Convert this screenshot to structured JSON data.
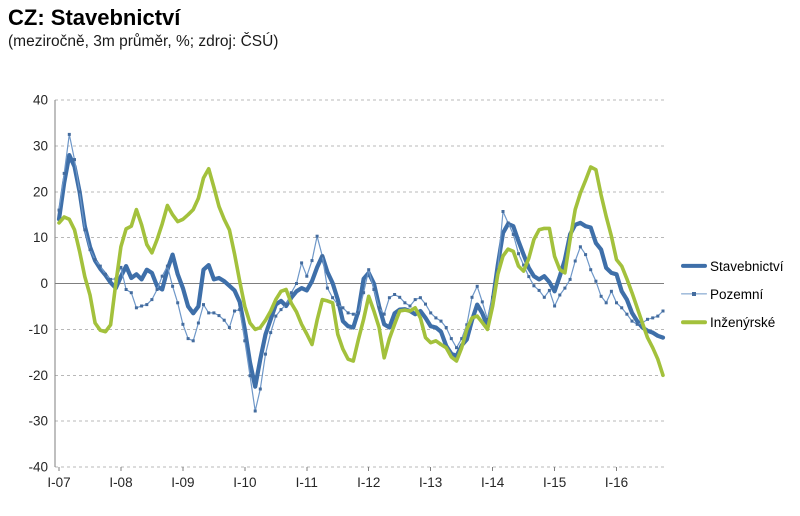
{
  "header": {
    "title": "CZ: Stavebnictví",
    "subtitle": "(meziročně, 3m průměr, %; zdroj: ČSÚ)"
  },
  "colors": {
    "stavebnictvi": "#3E6FA9",
    "pozemni": "#6E97C8",
    "pozemni_marker": "#446C9E",
    "inzenyrske": "#A3C13C",
    "gridline": "#b8b8b8",
    "zero_line": "#7f7f7f",
    "axis": "#7f7f7f",
    "tick_text": "#262626"
  },
  "chart_data": {
    "type": "line",
    "title": "CZ: Stavebnictví",
    "subtitle": "(meziročně, 3m průměr, %; zdroj: ČSÚ)",
    "xlabel": "",
    "ylabel": "",
    "x_unit": "monthly, Jan 2007 – Oct 2016",
    "ylim": [
      -40,
      40
    ],
    "y_ticks": [
      40,
      30,
      20,
      10,
      0,
      -10,
      -20,
      -30,
      -40
    ],
    "x_tick_labels": [
      "I-07",
      "I-08",
      "I-09",
      "I-10",
      "I-11",
      "I-12",
      "I-13",
      "I-14",
      "I-15",
      "I-16"
    ],
    "x_tick_month_positions": [
      0,
      12,
      24,
      36,
      48,
      60,
      72,
      84,
      96,
      108
    ],
    "grid": "horizontal-dashed",
    "legend_position": "right",
    "legend": [
      "Stavebnictví",
      "Pozemní",
      "Inženýrské"
    ],
    "series": [
      {
        "name": "Stavebnictví",
        "style": "thick-solid",
        "values": [
          14,
          22,
          28,
          25.5,
          20,
          12.5,
          8,
          5,
          3.2,
          1.8,
          0.2,
          -1,
          1.5,
          3.8,
          1.2,
          2.0,
          0.9,
          3.0,
          2.3,
          -0.6,
          -1.3,
          3.0,
          6.3,
          2.0,
          -1.0,
          -5.0,
          -6.5,
          -5.0,
          3.0,
          4.0,
          0.9,
          1.2,
          0.5,
          -0.5,
          -1.5,
          -4.0,
          -10,
          -17.2,
          -22.5,
          -16.5,
          -11.1,
          -7.8,
          -4.6,
          -3.8,
          -4.9,
          -3.1,
          -1.7,
          -1.0,
          -1.5,
          0.5,
          3.5,
          6.0,
          2.5,
          0.1,
          -3.5,
          -8.2,
          -9.3,
          -9.6,
          -6.0,
          1.0,
          2.3,
          0.0,
          -5.0,
          -8.9,
          -9.6,
          -6.5,
          -5.7,
          -5.6,
          -6.0,
          -6.7,
          -6.0,
          -7.5,
          -9.3,
          -9.6,
          -10.5,
          -13.6,
          -15.3,
          -15.8,
          -13.5,
          -12.2,
          -8.0,
          -4.6,
          -6.5,
          -9.3,
          -4.0,
          4.0,
          11.0,
          13.0,
          12.5,
          9.2,
          6.3,
          3.4,
          1.6,
          0.9,
          1.6,
          0.3,
          -1.7,
          1.6,
          5.2,
          10.7,
          12.8,
          13.2,
          12.5,
          12.2,
          8.8,
          7.4,
          3.4,
          2.3,
          2.0,
          -1.7,
          -3.5,
          -6.4,
          -8.2,
          -9.6,
          -10.3,
          -10.7,
          -11.4,
          -11.8
        ]
      },
      {
        "name": "Pozemní",
        "style": "thin-marker",
        "values": [
          16,
          24,
          32.5,
          27,
          20,
          11.7,
          7.4,
          5.2,
          3.8,
          2.0,
          0.9,
          1.0,
          3.5,
          -1.3,
          -2.0,
          -5.3,
          -4.9,
          -4.6,
          -3.5,
          -1.3,
          1.6,
          3.8,
          -0.6,
          -4.2,
          -8.9,
          -12.0,
          -12.5,
          -8.6,
          -4.6,
          -6.4,
          -6.4,
          -7.0,
          -8.0,
          -9.6,
          -6.0,
          -5.7,
          -12.5,
          -20.1,
          -27.8,
          -23.0,
          -15.4,
          -10.7,
          -7.1,
          -5.7,
          -4.6,
          -2.0,
          0.0,
          4.5,
          1.6,
          5.0,
          10.3,
          6.0,
          -1.0,
          -3.1,
          -4.6,
          -5.3,
          -6.4,
          -6.7,
          -6.4,
          -2.0,
          3.0,
          -1.3,
          -5.3,
          -6.7,
          -3.1,
          -2.4,
          -3.0,
          -4.2,
          -4.9,
          -3.5,
          -3.1,
          -4.5,
          -6.4,
          -7.5,
          -8.2,
          -9.6,
          -12.0,
          -14.0,
          -12.0,
          -9.0,
          -3.0,
          -0.6,
          -4.0,
          -7.8,
          -3.0,
          3.0,
          15.7,
          13.2,
          10.7,
          6.5,
          4.0,
          1.5,
          -0.5,
          -1.5,
          -3.0,
          -1.5,
          -4.9,
          -2.5,
          -1.0,
          0.9,
          4.9,
          8.0,
          6.3,
          3.0,
          0.5,
          -2.8,
          -4.2,
          -1.7,
          -4.2,
          -5.3,
          -6.7,
          -8.2,
          -8.9,
          -8.6,
          -7.8,
          -7.5,
          -7.1,
          -6.0
        ]
      },
      {
        "name": "Inženýrské",
        "style": "medium-solid",
        "values": [
          13.2,
          14.5,
          14.0,
          11.7,
          7.0,
          1.5,
          -2.5,
          -8.6,
          -10.2,
          -10.5,
          -9.0,
          0.0,
          8.0,
          11.9,
          12.5,
          16.1,
          12.8,
          8.5,
          6.7,
          9.6,
          13.0,
          17.0,
          15.0,
          13.5,
          14.0,
          15.0,
          16.1,
          18.6,
          23.0,
          25.0,
          21.0,
          16.8,
          14.0,
          11.7,
          6.5,
          0.5,
          -5.0,
          -8.6,
          -10.0,
          -9.6,
          -8.0,
          -6.0,
          -3.5,
          -1.7,
          -1.3,
          -4.3,
          -6.2,
          -8.9,
          -11.0,
          -13.3,
          -8.0,
          -3.5,
          -3.8,
          -4.2,
          -11.1,
          -14.3,
          -16.5,
          -16.9,
          -12.2,
          -7.8,
          -2.8,
          -6.0,
          -9.6,
          -16.2,
          -12.0,
          -8.9,
          -6.0,
          -5.8,
          -6.0,
          -5.3,
          -7.5,
          -11.8,
          -12.9,
          -12.5,
          -13.3,
          -14.0,
          -16.0,
          -16.9,
          -14.0,
          -10.0,
          -7.5,
          -7.1,
          -8.5,
          -10.0,
          -5.0,
          2.0,
          6.0,
          7.5,
          7.0,
          3.8,
          2.7,
          5.5,
          9.6,
          11.7,
          12.0,
          12.0,
          5.9,
          3.0,
          2.3,
          9.6,
          16.1,
          19.7,
          22.5,
          25.4,
          24.8,
          19.3,
          14.6,
          10.3,
          5.2,
          3.8,
          1.0,
          -2.0,
          -5.3,
          -8.6,
          -11.8,
          -14.0,
          -16.5,
          -20.0
        ]
      }
    ]
  }
}
